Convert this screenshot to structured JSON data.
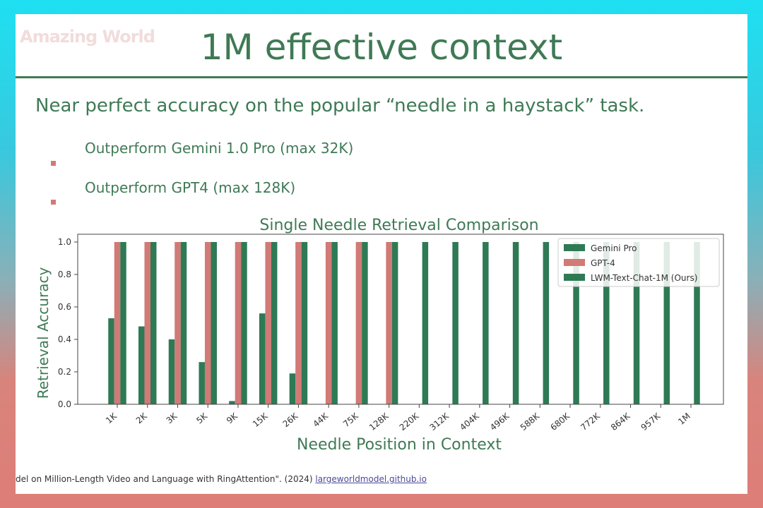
{
  "slide": {
    "watermark": "Amazing World",
    "title": "1M effective context",
    "headline": "Near perfect accuracy on the popular “needle in a haystack” task.",
    "bullets": [
      "Outperform Gemini 1.0 Pro (max 32K)",
      "Outperform GPT4 (max 128K)"
    ],
    "citation_text": "del on Million-Length Video and Language with RingAttention\". (2024) ",
    "citation_link": "largeworldmodel.github.io"
  },
  "colors": {
    "title_green": "#3f7a55",
    "gemini": "#2e7a55",
    "gpt4": "#d17a76",
    "lwm": "#2e7a55",
    "axis": "#444444"
  },
  "chart_data": {
    "type": "bar",
    "title": "Single Needle Retrieval Comparison",
    "xlabel": "Needle Position in Context",
    "ylabel": "Retrieval Accuracy",
    "ylim": [
      0,
      1.0
    ],
    "yticks": [
      0.0,
      0.2,
      0.4,
      0.6,
      0.8,
      1.0
    ],
    "categories": [
      "1K",
      "2K",
      "3K",
      "5K",
      "9K",
      "15K",
      "26K",
      "44K",
      "75K",
      "128K",
      "220K",
      "312K",
      "404K",
      "496K",
      "588K",
      "680K",
      "772K",
      "864K",
      "957K",
      "1M"
    ],
    "series": [
      {
        "name": "Gemini Pro",
        "values": [
          0.53,
          0.48,
          0.4,
          0.26,
          0.02,
          0.56,
          0.19,
          null,
          null,
          null,
          null,
          null,
          null,
          null,
          null,
          null,
          null,
          null,
          null,
          null
        ]
      },
      {
        "name": "GPT-4",
        "values": [
          1.0,
          1.0,
          1.0,
          1.0,
          1.0,
          1.0,
          1.0,
          1.0,
          1.0,
          1.0,
          null,
          null,
          null,
          null,
          null,
          null,
          null,
          null,
          null,
          null
        ]
      },
      {
        "name": "LWM-Text-Chat-1M (Ours)",
        "values": [
          1.0,
          1.0,
          1.0,
          1.0,
          1.0,
          1.0,
          1.0,
          1.0,
          1.0,
          1.0,
          1.0,
          1.0,
          1.0,
          1.0,
          1.0,
          1.0,
          1.0,
          1.0,
          1.0,
          1.0
        ]
      }
    ],
    "legend_position": "top-right",
    "grid": false
  }
}
